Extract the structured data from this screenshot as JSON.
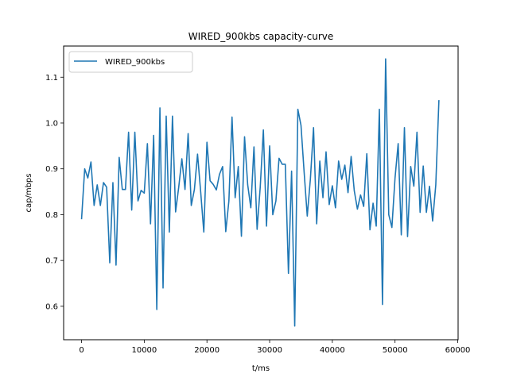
{
  "chart_data": {
    "type": "line",
    "title": "WIRED_900kbs capacity-curve",
    "xlabel": "t/ms",
    "ylabel": "cap/mbps",
    "xlim": [
      -2860,
      60060
    ],
    "ylim": [
      0.527,
      1.168
    ],
    "xticks": [
      0,
      10000,
      20000,
      30000,
      40000,
      50000,
      60000
    ],
    "xtick_labels": [
      "0",
      "10000",
      "20000",
      "30000",
      "40000",
      "50000",
      "60000"
    ],
    "yticks": [
      0.6,
      0.7,
      0.8,
      0.9,
      1.0,
      1.1
    ],
    "ytick_labels": [
      "0.6",
      "0.7",
      "0.8",
      "0.9",
      "1.0",
      "1.1"
    ],
    "grid": false,
    "legend_position": "upper-left",
    "series": [
      {
        "name": "WIRED_900kbs",
        "color": "#1f77b4",
        "x": [
          0,
          500,
          1000,
          1500,
          2000,
          2500,
          3000,
          3500,
          4000,
          4500,
          5000,
          5500,
          6000,
          6500,
          7000,
          7500,
          8000,
          8500,
          9000,
          9500,
          10000,
          10500,
          11000,
          11500,
          12000,
          12500,
          13000,
          13500,
          14000,
          14500,
          15000,
          15500,
          16000,
          16500,
          17000,
          17500,
          18000,
          18500,
          19000,
          19500,
          20000,
          20500,
          21000,
          21500,
          22000,
          22500,
          23000,
          23500,
          24000,
          24500,
          25000,
          25500,
          26000,
          26500,
          27000,
          27500,
          28000,
          28500,
          29000,
          29500,
          30000,
          30500,
          31000,
          31500,
          32000,
          32500,
          33000,
          33500,
          34000,
          34500,
          35000,
          35500,
          36000,
          36500,
          37000,
          37500,
          38000,
          38500,
          39000,
          39500,
          40000,
          40500,
          41000,
          41500,
          42000,
          42500,
          43000,
          43500,
          44000,
          44500,
          45000,
          45500,
          46000,
          46500,
          47000,
          47500,
          48000,
          48500,
          49000,
          49500,
          50000,
          50500,
          51000,
          51500,
          52000,
          52500,
          53000,
          53500,
          54000,
          54500,
          55000,
          55500,
          56000,
          56500,
          57000
        ],
        "y": [
          0.79,
          0.9,
          0.88,
          0.915,
          0.82,
          0.865,
          0.82,
          0.87,
          0.86,
          0.695,
          0.87,
          0.69,
          0.925,
          0.855,
          0.855,
          0.98,
          0.81,
          0.98,
          0.83,
          0.853,
          0.847,
          0.955,
          0.78,
          0.973,
          0.593,
          1.033,
          0.64,
          1.015,
          0.762,
          1.015,
          0.806,
          0.86,
          0.922,
          0.855,
          0.977,
          0.82,
          0.855,
          0.932,
          0.85,
          0.762,
          0.958,
          0.874,
          0.866,
          0.854,
          0.888,
          0.905,
          0.763,
          0.83,
          1.013,
          0.837,
          0.905,
          0.753,
          0.97,
          0.865,
          0.815,
          0.948,
          0.768,
          0.86,
          0.985,
          0.775,
          0.95,
          0.8,
          0.83,
          0.923,
          0.91,
          0.91,
          0.672,
          0.895,
          0.557,
          1.03,
          0.995,
          0.893,
          0.797,
          0.878,
          0.99,
          0.78,
          0.917,
          0.837,
          0.937,
          0.822,
          0.863,
          0.815,
          0.917,
          0.877,
          0.908,
          0.848,
          0.927,
          0.852,
          0.812,
          0.843,
          0.818,
          0.933,
          0.767,
          0.825,
          0.775,
          1.03,
          0.604,
          1.14,
          0.8,
          0.772,
          0.88,
          0.955,
          0.756,
          0.99,
          0.752,
          0.905,
          0.862,
          0.98,
          0.805,
          0.906,
          0.805,
          0.862,
          0.786,
          0.865,
          1.05
        ]
      }
    ]
  }
}
